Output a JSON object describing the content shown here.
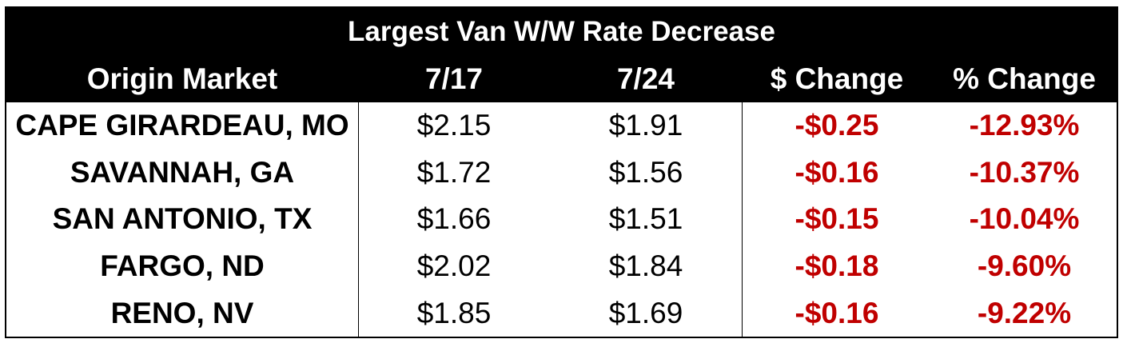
{
  "table": {
    "title": "Largest Van W/W Rate Decrease",
    "headers": [
      "Origin Market",
      "7/17",
      "7/24",
      "$ Change",
      "% Change"
    ],
    "rows": [
      [
        "CAPE GIRARDEAU, MO",
        "$2.15",
        "$1.91",
        "-$0.25",
        "-12.93%"
      ],
      [
        "SAVANNAH, GA",
        "$1.72",
        "$1.56",
        "-$0.16",
        "-10.37%"
      ],
      [
        "SAN ANTONIO, TX",
        "$1.66",
        "$1.51",
        "-$0.15",
        "-10.04%"
      ],
      [
        "FARGO, ND",
        "$2.02",
        "$1.84",
        "-$0.18",
        "-9.60%"
      ],
      [
        "RENO, NV",
        "$1.85",
        "$1.69",
        "-$0.16",
        "-9.22%"
      ]
    ],
    "colors": {
      "header_bg": "#000000",
      "header_text": "#ffffff",
      "body_text": "#000000",
      "negative_change": "#c00000"
    }
  }
}
